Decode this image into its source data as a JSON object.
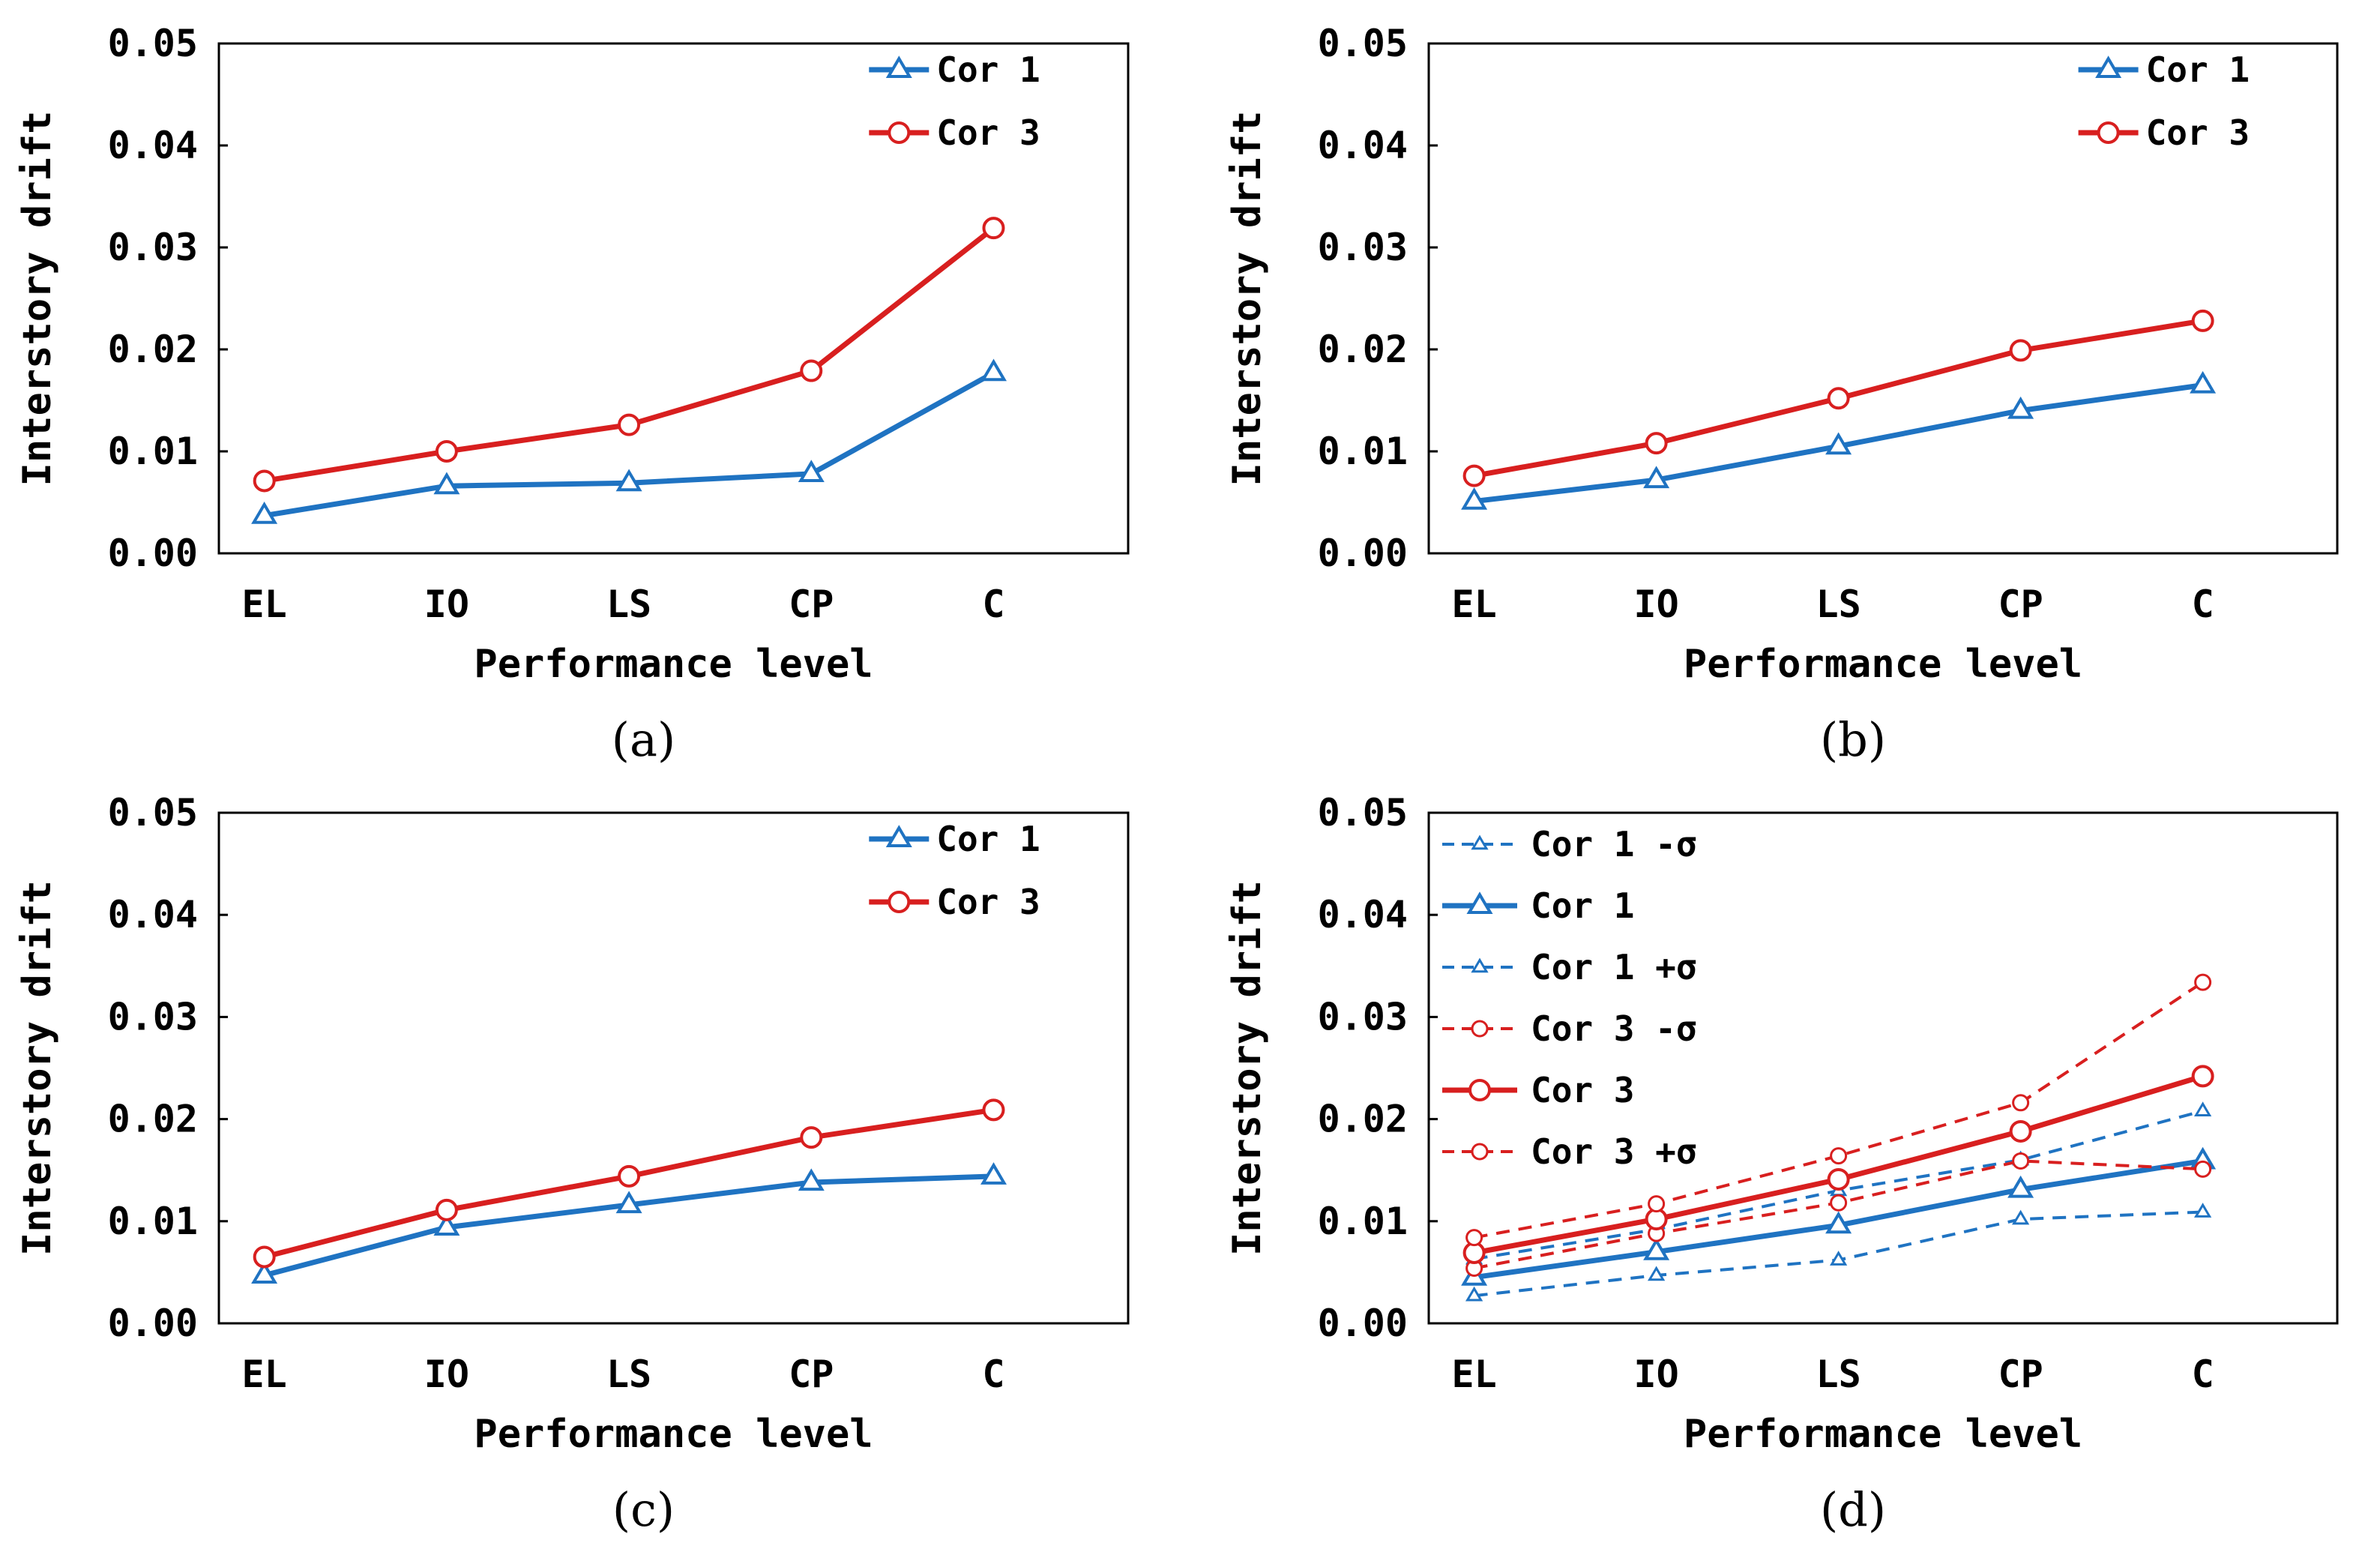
{
  "colors": {
    "cor1": "#1f73c2",
    "cor3": "#d81f1f",
    "axis": "#000000",
    "bg": "#ffffff"
  },
  "chart_data": [
    {
      "panel": "(a)",
      "type": "line",
      "categories": [
        "EL",
        "IO",
        "LS",
        "CP",
        "C"
      ],
      "xlabel": "Performance level",
      "ylabel": "Interstory drift",
      "ylim": [
        0,
        0.05
      ],
      "yticks": [
        "0.00",
        "0.01",
        "0.02",
        "0.03",
        "0.04",
        "0.05"
      ],
      "legend_position": "top-right",
      "series": [
        {
          "name": "Cor 1",
          "color": "#1f73c2",
          "marker": "triangle",
          "dashed": false,
          "values": [
            0.0037,
            0.0066,
            0.0069,
            0.0078,
            0.0177
          ]
        },
        {
          "name": "Cor 3",
          "color": "#d81f1f",
          "marker": "circle",
          "dashed": false,
          "values": [
            0.0071,
            0.01,
            0.0126,
            0.0179,
            0.0319
          ]
        }
      ]
    },
    {
      "panel": "(b)",
      "type": "line",
      "categories": [
        "EL",
        "IO",
        "LS",
        "CP",
        "C"
      ],
      "xlabel": "Performance level",
      "ylabel": "Interstory drift",
      "ylim": [
        0,
        0.05
      ],
      "yticks": [
        "0.00",
        "0.01",
        "0.02",
        "0.03",
        "0.04",
        "0.05"
      ],
      "legend_position": "top-right",
      "series": [
        {
          "name": "Cor 1",
          "color": "#1f73c2",
          "marker": "triangle",
          "dashed": false,
          "values": [
            0.0051,
            0.0072,
            0.0105,
            0.014,
            0.0165
          ]
        },
        {
          "name": "Cor 3",
          "color": "#d81f1f",
          "marker": "circle",
          "dashed": false,
          "values": [
            0.0076,
            0.0108,
            0.0152,
            0.0199,
            0.0228
          ]
        }
      ]
    },
    {
      "panel": "(c)",
      "type": "line",
      "categories": [
        "EL",
        "IO",
        "LS",
        "CP",
        "C"
      ],
      "xlabel": "Performance level",
      "ylabel": "Interstory drift",
      "ylim": [
        0,
        0.05
      ],
      "yticks": [
        "0.00",
        "0.01",
        "0.02",
        "0.03",
        "0.04",
        "0.05"
      ],
      "legend_position": "top-right",
      "series": [
        {
          "name": "Cor 1",
          "color": "#1f73c2",
          "marker": "triangle",
          "dashed": false,
          "values": [
            0.0047,
            0.0094,
            0.0116,
            0.0138,
            0.0144
          ]
        },
        {
          "name": "Cor 3",
          "color": "#d81f1f",
          "marker": "circle",
          "dashed": false,
          "values": [
            0.0065,
            0.0111,
            0.0144,
            0.0182,
            0.0209
          ]
        }
      ]
    },
    {
      "panel": "(d)",
      "type": "line",
      "categories": [
        "EL",
        "IO",
        "LS",
        "CP",
        "C"
      ],
      "xlabel": "Performance level",
      "ylabel": "Interstory drift",
      "ylim": [
        0,
        0.05
      ],
      "yticks": [
        "0.00",
        "0.01",
        "0.02",
        "0.03",
        "0.04",
        "0.05"
      ],
      "legend_position": "top-left",
      "series": [
        {
          "name": "Cor 1 -σ",
          "color": "#1f73c2",
          "marker": "triangle",
          "dashed": true,
          "values": [
            0.0027,
            0.0047,
            0.0062,
            0.0102,
            0.0109
          ]
        },
        {
          "name": "Cor 1",
          "color": "#1f73c2",
          "marker": "triangle",
          "dashed": false,
          "values": [
            0.0045,
            0.007,
            0.0096,
            0.0131,
            0.0159
          ]
        },
        {
          "name": "Cor 1 +σ",
          "color": "#1f73c2",
          "marker": "triangle",
          "dashed": true,
          "values": [
            0.0063,
            0.0092,
            0.013,
            0.016,
            0.0208
          ]
        },
        {
          "name": "Cor 3 -σ",
          "color": "#d81f1f",
          "marker": "circle",
          "dashed": true,
          "values": [
            0.0054,
            0.0088,
            0.0118,
            0.0159,
            0.0151
          ]
        },
        {
          "name": "Cor 3",
          "color": "#d81f1f",
          "marker": "circle",
          "dashed": false,
          "values": [
            0.0069,
            0.0102,
            0.0141,
            0.0188,
            0.0242
          ]
        },
        {
          "name": "Cor 3 +σ",
          "color": "#d81f1f",
          "marker": "circle",
          "dashed": true,
          "values": [
            0.0084,
            0.0117,
            0.0164,
            0.0216,
            0.0334
          ]
        }
      ]
    }
  ]
}
